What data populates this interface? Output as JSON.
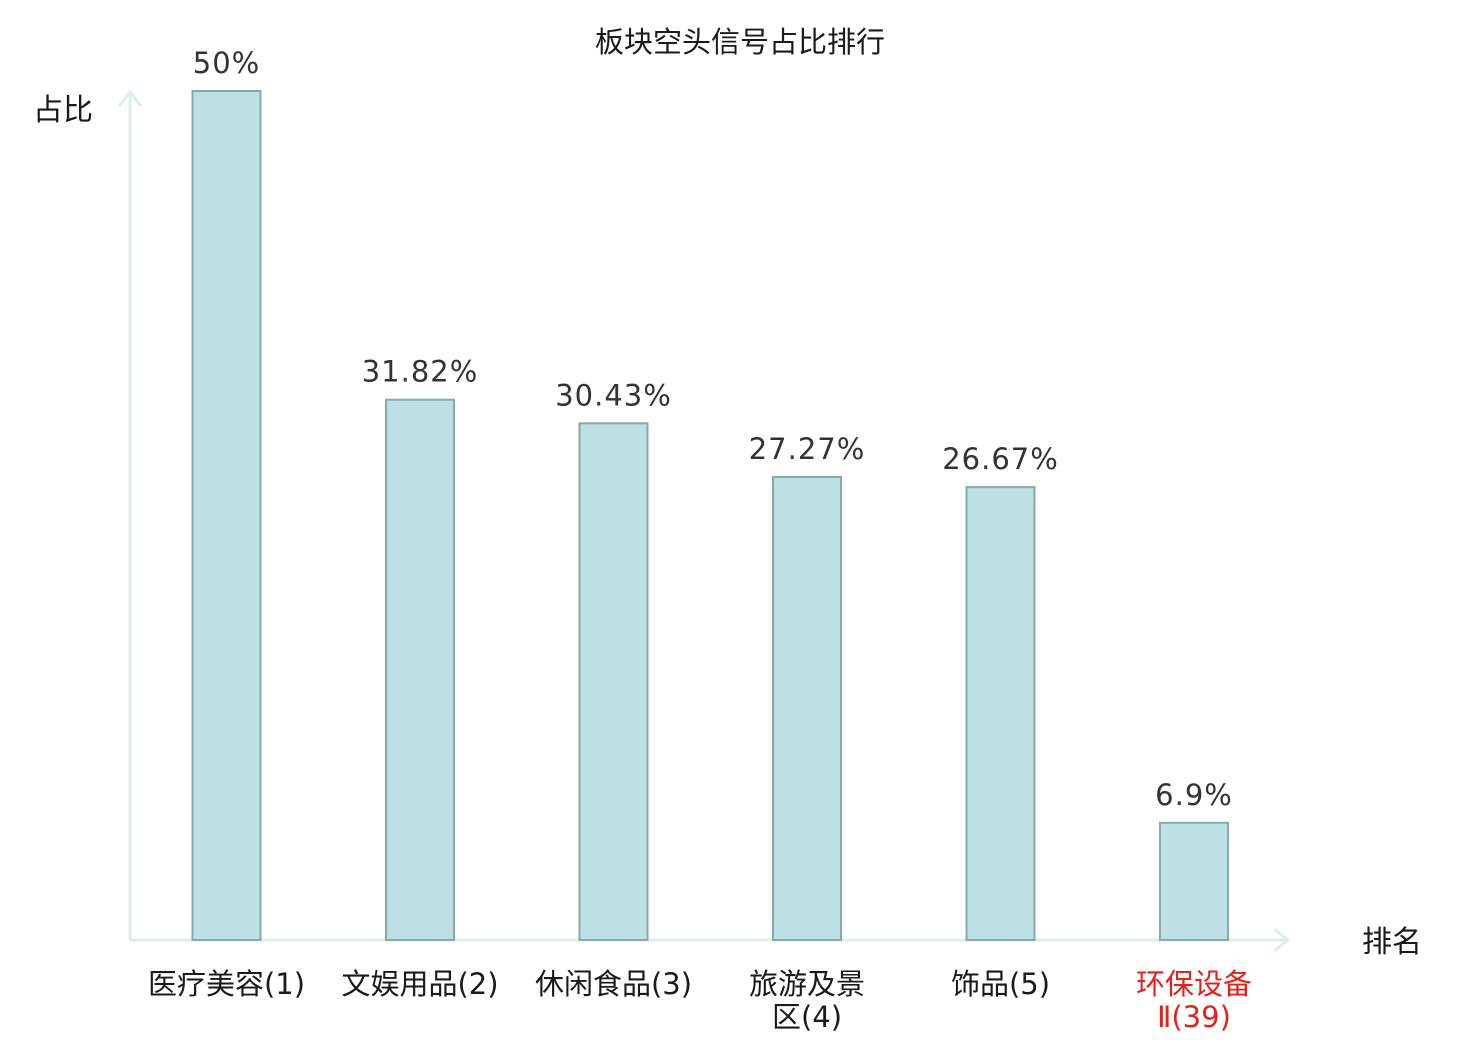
{
  "chart_data": {
    "type": "bar",
    "title": "板块空头信号占比排行",
    "ylabel": "占比",
    "xlabel": "排名",
    "ylim": [
      0,
      50
    ],
    "categories": [
      {
        "lines": [
          "医疗美容(1)"
        ],
        "name": "医疗美容",
        "rank": "(1)",
        "highlight": false
      },
      {
        "lines": [
          "文娱用品(2)"
        ],
        "name": "文娱用品",
        "rank": "(2)",
        "highlight": false
      },
      {
        "lines": [
          "休闲食品(3)"
        ],
        "name": "休闲食品",
        "rank": "(3)",
        "highlight": false
      },
      {
        "lines": [
          "旅游及景",
          "区(4)"
        ],
        "name": "旅游及景区",
        "rank": "(4)",
        "highlight": false
      },
      {
        "lines": [
          "饰品(5)"
        ],
        "name": "饰品",
        "rank": "(5)",
        "highlight": false
      },
      {
        "lines": [
          "环保设备",
          "Ⅱ(39)"
        ],
        "name": "环保设备Ⅱ",
        "rank": "(39)",
        "highlight": true
      }
    ],
    "values": [
      50,
      31.82,
      30.43,
      27.27,
      26.67,
      6.9
    ],
    "value_labels": [
      "50%",
      "31.82%",
      "30.43%",
      "27.27%",
      "26.67%",
      "6.9%"
    ],
    "grid": false,
    "legend": "none",
    "colors": {
      "bar_fill": "#bce0e3",
      "bar_stroke": "#86a9ac",
      "axis": "#dcefed",
      "highlight_text": "#e8201c",
      "normal_text": "#1a1a1a"
    }
  }
}
